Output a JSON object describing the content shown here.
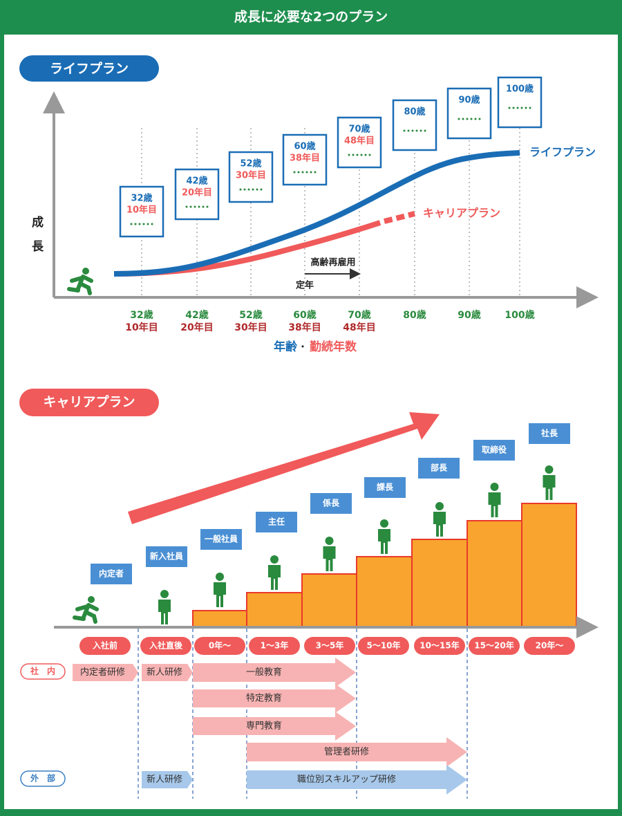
{
  "header": {
    "title": "成長に必要な2つのプラン"
  },
  "life_plan": {
    "badge": "ライフプラン",
    "y_axis_label": "成長",
    "milestones": [
      {
        "age": "32歳",
        "years": "10年目"
      },
      {
        "age": "42歳",
        "years": "20年目"
      },
      {
        "age": "52歳",
        "years": "30年目"
      },
      {
        "age": "60歳",
        "years": "38年目"
      },
      {
        "age": "70歳",
        "years": "48年目"
      },
      {
        "age": "80歳"
      },
      {
        "age": "90歳"
      },
      {
        "age": "100歳"
      }
    ],
    "curve_labels": {
      "life": "ライフプラン",
      "career": "キャリアプラン"
    },
    "retirement": "定年",
    "reemployment": "高齢再雇用",
    "x_axis_title": {
      "age": "年齢",
      "separator": "・",
      "tenure": "勤続年数"
    }
  },
  "career_plan": {
    "badge": "キャリアプラン",
    "positions": [
      "内定者",
      "新入社員",
      "一般社員",
      "主任",
      "係長",
      "課長",
      "部長",
      "取締役",
      "社長"
    ],
    "periods": [
      "入社前",
      "入社直後",
      "0年～",
      "1～3年",
      "3～5年",
      "5～10年",
      "10～15年",
      "15～20年",
      "20年～"
    ],
    "training_groups": [
      {
        "label": "社　内",
        "items": [
          "内定者研修",
          "新人研修",
          "一般教育",
          "特定教育",
          "専門教育",
          "管理者研修"
        ]
      },
      {
        "label": "外　部",
        "items": [
          "新人研修",
          "職位別スキルアップ研修"
        ]
      }
    ]
  }
}
